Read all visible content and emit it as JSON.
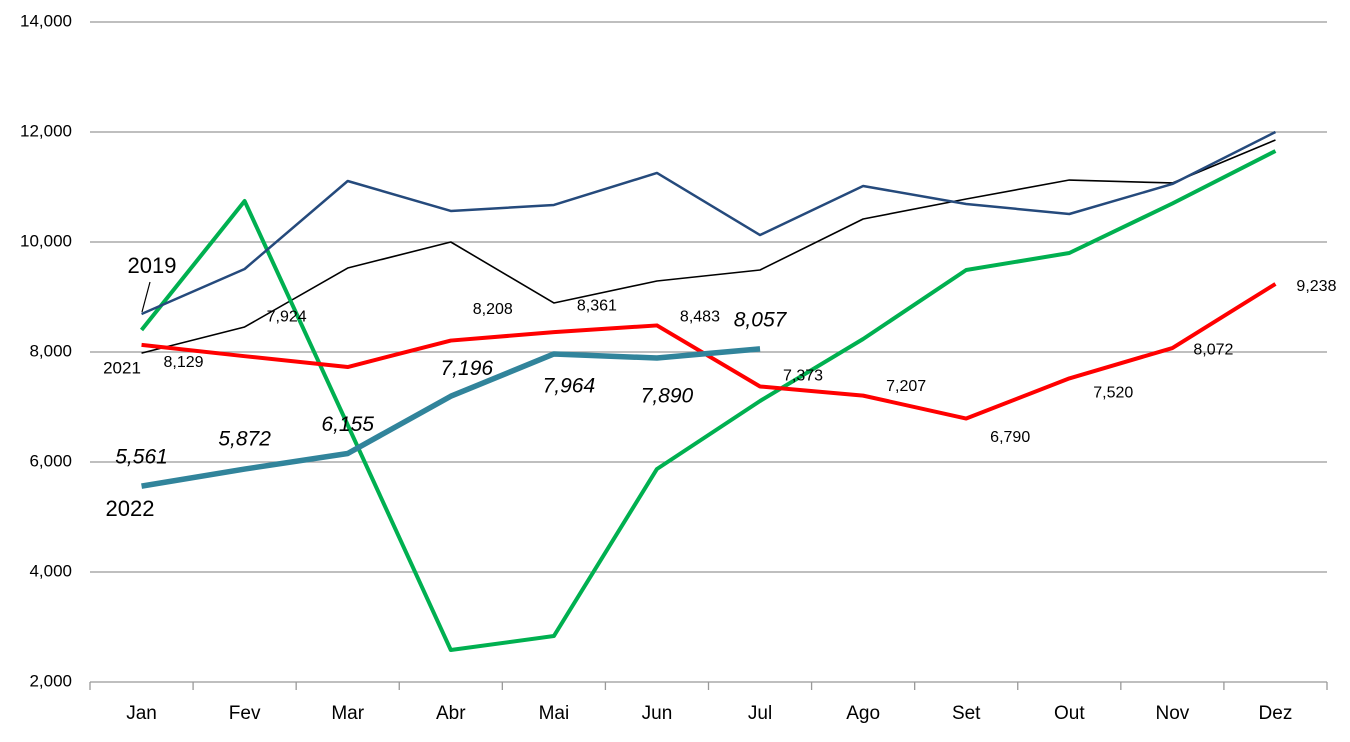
{
  "chart_data": {
    "type": "line",
    "categories": [
      "Jan",
      "Fev",
      "Mar",
      "Abr",
      "Mai",
      "Jun",
      "Jul",
      "Ago",
      "Set",
      "Out",
      "Nov",
      "Dez"
    ],
    "series": [
      {
        "color": "#000000",
        "values": [
          7980,
          8455,
          9527,
          10000,
          8891,
          9291,
          9491,
          10418,
          10782,
          11127,
          11073,
          11855
        ]
      },
      {
        "color": "#00b050",
        "values": [
          8400,
          10745,
          6673,
          2582,
          2836,
          5873,
          7109,
          8236,
          9491,
          9800,
          10700,
          11655
        ]
      },
      {
        "name": "2019",
        "color": "#254a7c",
        "values": [
          8691,
          9509,
          11109,
          10564,
          10673,
          11255,
          10127,
          11018,
          10691,
          10509,
          11055,
          12000
        ]
      },
      {
        "name": "2021",
        "color": "#ff0000",
        "values": [
          8129,
          7924,
          7727,
          8208,
          8361,
          8483,
          7373,
          7207,
          6790,
          7520,
          8072,
          9238
        ],
        "value_labels": [
          "8,129",
          "7,924",
          null,
          "8,208",
          "8,361",
          "8,483",
          "7,373",
          "7,207",
          "6,790",
          "7,520",
          "8,072",
          "9,238"
        ]
      },
      {
        "name": "2022",
        "color": "#31849b",
        "values": [
          5561,
          5872,
          6155,
          7196,
          7964,
          7890,
          8057,
          null,
          null,
          null,
          null,
          null
        ],
        "value_labels": [
          "5,561",
          "5,872",
          "6,155",
          "7,196",
          "7,964",
          "7,890",
          "8,057",
          null,
          null,
          null,
          null,
          null
        ]
      }
    ],
    "ylim": [
      2000,
      14000
    ],
    "yticks": [
      {
        "value": 2000,
        "label": "2,000"
      },
      {
        "value": 4000,
        "label": "4,000"
      },
      {
        "value": 6000,
        "label": "6,000"
      },
      {
        "value": 8000,
        "label": "8,000"
      },
      {
        "value": 10000,
        "label": "10,000"
      },
      {
        "value": 12000,
        "label": "12,000"
      },
      {
        "value": 14000,
        "label": "14,000"
      }
    ],
    "grid": true
  }
}
